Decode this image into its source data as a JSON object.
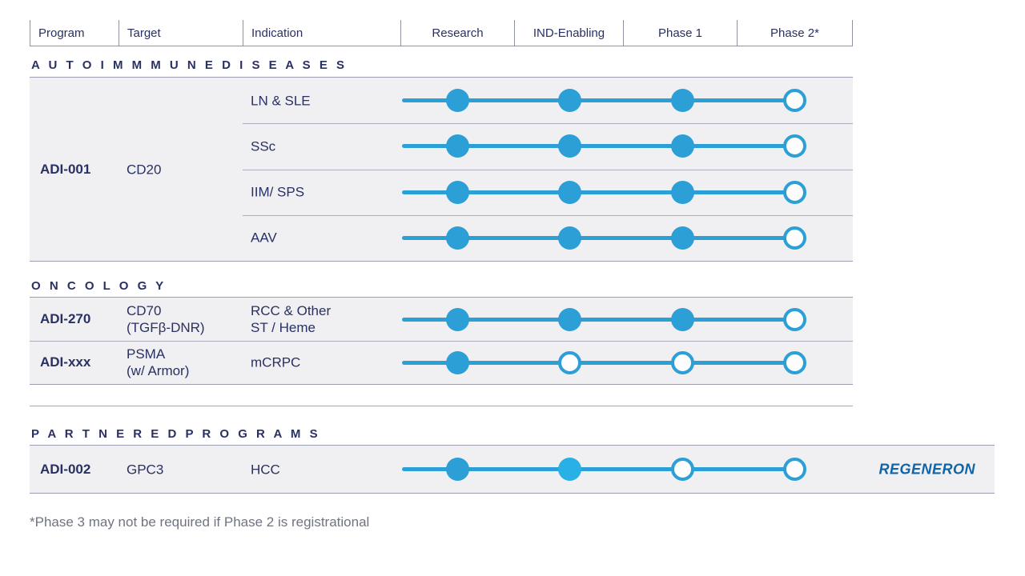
{
  "header": {
    "columns": [
      "Program",
      "Target",
      "Indication",
      "Research",
      "IND-Enabling",
      "Phase 1",
      "Phase 2*"
    ]
  },
  "sections": [
    {
      "title": "A U T O I M M M U N E   D I S E A S E S",
      "programs": [
        {
          "program": "ADI-001",
          "target": "CD20",
          "rows": [
            {
              "indication": "LN & SLE",
              "milestones": [
                "filled",
                "filled",
                "filled",
                "open"
              ]
            },
            {
              "indication": "SSc",
              "milestones": [
                "filled",
                "filled",
                "filled",
                "open"
              ]
            },
            {
              "indication": "IIM/ SPS",
              "milestones": [
                "filled",
                "filled",
                "filled",
                "open"
              ]
            },
            {
              "indication": "AAV",
              "milestones": [
                "filled",
                "filled",
                "filled",
                "open"
              ]
            }
          ]
        }
      ]
    },
    {
      "title": "O N C O L O G Y",
      "programs": [
        {
          "program": "ADI-270",
          "target_line1": "CD70",
          "target_line2": "(TGFβ-DNR)",
          "indication_line1": "RCC & Other",
          "indication_line2": "ST / Heme",
          "milestones": [
            "filled",
            "filled",
            "filled",
            "open"
          ]
        },
        {
          "program": "ADI-xxx",
          "target_line1": "PSMA",
          "target_line2": "(w/ Armor)",
          "indication": "mCRPC",
          "milestones": [
            "filled",
            "open",
            "open",
            "open"
          ]
        }
      ]
    },
    {
      "title": "P A R T N E R E D   P R O G R A M S",
      "programs": [
        {
          "program": "ADI-002",
          "target": "GPC3",
          "indication": "HCC",
          "milestones": [
            "filled",
            "filled-light",
            "open",
            "open"
          ],
          "partner": "REGENERON"
        }
      ]
    }
  ],
  "footnote": "*Phase 3 may not be required if Phase 2 is registrational",
  "colors": {
    "accent_blue": "#2B9FD6",
    "accent_blue_light": "#29B0E5",
    "navy": "#293063",
    "partner_blue": "#1165A7",
    "row_background": "#F0F0F2"
  }
}
